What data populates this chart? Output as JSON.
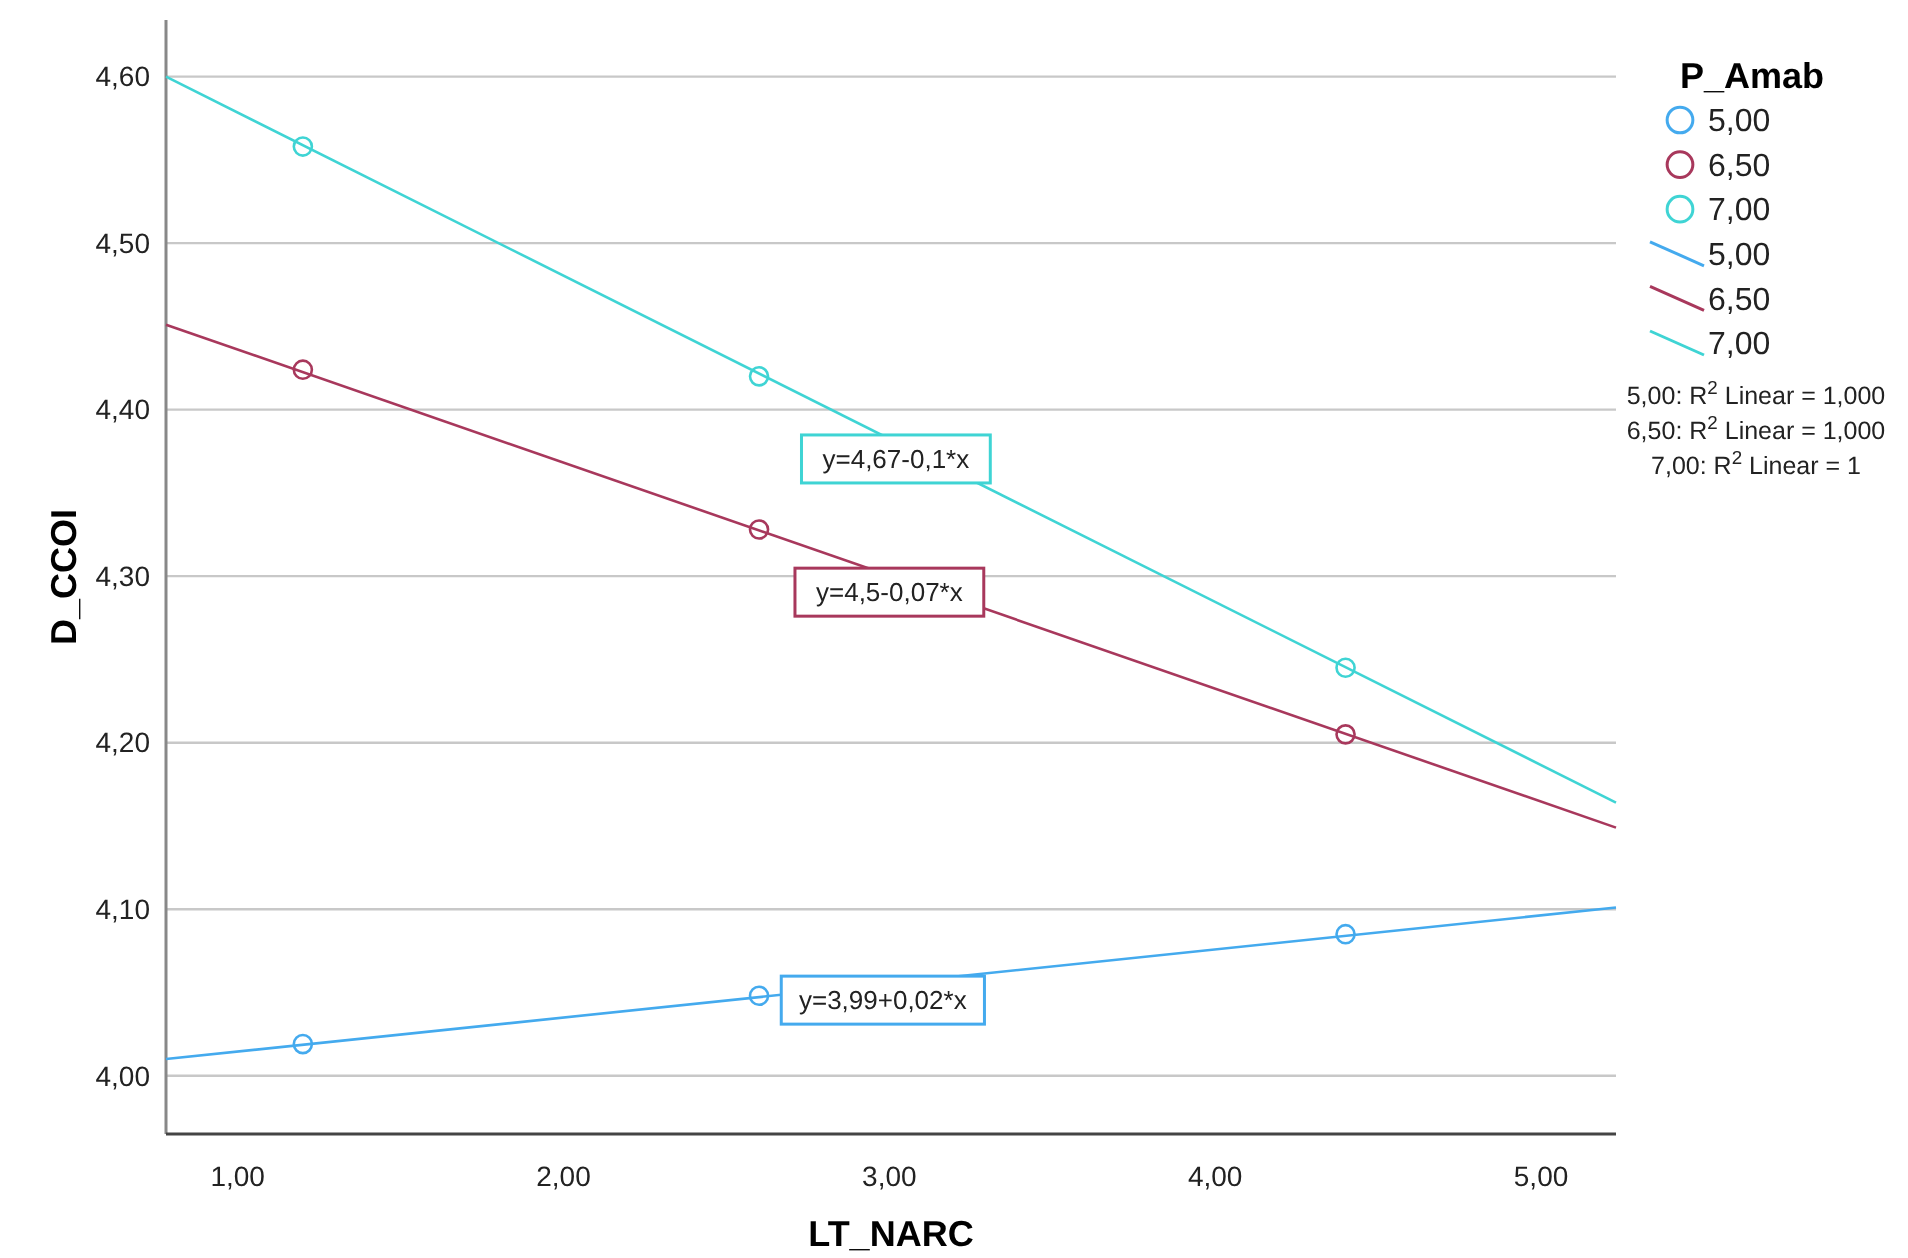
{
  "chart_data": {
    "type": "scatter",
    "xlabel": "LT_NARC",
    "ylabel": "D_CCOI",
    "legend_title": "P_Amab",
    "xlim": [
      0.78,
      5.23
    ],
    "xticks": [
      {
        "value": 1,
        "label": "1,00"
      },
      {
        "value": 2,
        "label": "2,00"
      },
      {
        "value": 3,
        "label": "3,00"
      },
      {
        "value": 4,
        "label": "4,00"
      },
      {
        "value": 5,
        "label": "5,00"
      }
    ],
    "ylim": [
      3.965,
      4.634
    ],
    "yticks": [
      {
        "value": 4.0,
        "label": "4,00"
      },
      {
        "value": 4.1,
        "label": "4,10"
      },
      {
        "value": 4.2,
        "label": "4,20"
      },
      {
        "value": 4.3,
        "label": "4,30"
      },
      {
        "value": 4.4,
        "label": "4,40"
      },
      {
        "value": 4.5,
        "label": "4,50"
      },
      {
        "value": 4.6,
        "label": "4,60"
      }
    ],
    "grid": "y",
    "legend": "right",
    "series": [
      {
        "name": "5,00",
        "marker": "circle",
        "color": "#44aaee",
        "x": [
          1.2,
          2.6,
          4.4
        ],
        "values": [
          4.019,
          4.048,
          4.085
        ]
      },
      {
        "name": "6,50",
        "marker": "circle",
        "color": "#a8385c",
        "x": [
          1.2,
          2.6,
          4.4
        ],
        "values": [
          4.424,
          4.328,
          4.205
        ]
      },
      {
        "name": "7,00",
        "marker": "circle",
        "color": "#3fd4d4",
        "x": [
          1.2,
          2.6,
          4.4
        ],
        "values": [
          4.558,
          4.42,
          4.245
        ]
      },
      {
        "name": "5,00",
        "type": "line",
        "color": "#44aaee",
        "x": [
          0.78,
          5.23
        ],
        "values": [
          4.01,
          4.101
        ]
      },
      {
        "name": "6,50",
        "type": "line",
        "color": "#a8385c",
        "x": [
          0.78,
          5.23
        ],
        "values": [
          4.451,
          4.149
        ]
      },
      {
        "name": "7,00",
        "type": "line",
        "color": "#3fd4d4",
        "x": [
          0.78,
          5.23
        ],
        "values": [
          4.6,
          4.164
        ]
      }
    ],
    "annotations": [
      {
        "text": "y=4,67-0,1*x",
        "x": 3.02,
        "y": 4.38
      },
      {
        "text": "y=4,5-0,07*x",
        "x": 3.0,
        "y": 4.3
      },
      {
        "text": "y=3,99+0,02*x",
        "x": 2.98,
        "y": 4.055
      },
      "5,00: R$^{2}$ Linear = 1,000",
      "6,50: R$^{2}$ Linear = 1,000",
      "7,00: R$^{2}$ Linear = 1"
    ]
  }
}
